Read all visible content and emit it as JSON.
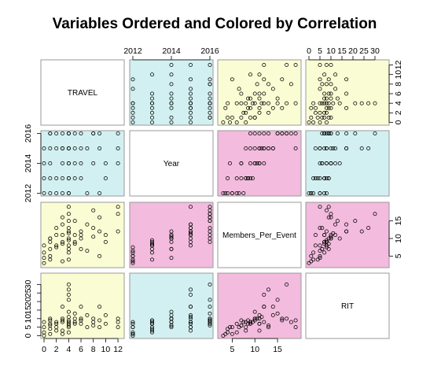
{
  "chart_data": {
    "type": "scatter",
    "title": "Variables Ordered and Colored by Correlation",
    "variables": [
      "TRAVEL",
      "Year",
      "Members_Per_Event",
      "RIT"
    ],
    "ranges": {
      "TRAVEL": [
        0,
        12.5
      ],
      "Year": [
        2012,
        2016
      ],
      "Members_Per_Event": [
        2.5,
        19.5
      ],
      "RIT": [
        0,
        35
      ]
    },
    "ticks": {
      "TRAVEL": [
        "0",
        "2",
        "4",
        "6",
        "8",
        "10",
        "12"
      ],
      "Year": [
        "2012",
        "2014",
        "2016"
      ],
      "Members_Per_Event": [
        "5",
        "10",
        "15"
      ],
      "RIT": [
        "0",
        "5",
        "10",
        "15",
        "20",
        "25",
        "30"
      ]
    },
    "tick_values": {
      "TRAVEL": [
        0,
        2,
        4,
        6,
        8,
        10,
        12
      ],
      "Year": [
        2012,
        2014,
        2016
      ],
      "Members_Per_Event": [
        5,
        10,
        15
      ],
      "RIT": [
        0,
        5,
        10,
        15,
        20,
        25,
        30
      ]
    },
    "panel_colors": {
      "high": "#f3bbdd",
      "mid": "#d2f0f1",
      "low": "#fafcd3",
      "diagonal": "#ffffff"
    },
    "panel_color_matrix": [
      [
        "diagonal",
        "mid",
        "low",
        "low"
      ],
      [
        "mid",
        "diagonal",
        "high",
        "mid"
      ],
      [
        "low",
        "high",
        "diagonal",
        "high"
      ],
      [
        "low",
        "mid",
        "high",
        "diagonal"
      ]
    ],
    "grid": false,
    "legend": "none",
    "observations": [
      [
        0,
        2012,
        3.0,
        0
      ],
      [
        0,
        2013,
        6.0,
        2
      ],
      [
        0,
        2014,
        4.5,
        5
      ],
      [
        0,
        2015,
        8.0,
        8
      ],
      [
        1,
        2016,
        9.0,
        7
      ],
      [
        1,
        2012,
        5.0,
        1
      ],
      [
        1,
        2016,
        10.0,
        9
      ],
      [
        1,
        2014,
        7.0,
        6
      ],
      [
        1,
        2015,
        10.0,
        10
      ],
      [
        1,
        2013,
        4.0,
        4
      ],
      [
        2,
        2013,
        8.0,
        3
      ],
      [
        2,
        2016,
        11.0,
        7
      ],
      [
        2,
        2015,
        13.0,
        5
      ],
      [
        2,
        2012,
        7.5,
        8
      ],
      [
        3,
        2012,
        3.5,
        1
      ],
      [
        3,
        2014,
        9.0,
        8
      ],
      [
        3,
        2015,
        14.0,
        17
      ],
      [
        3,
        2016,
        16.0,
        10
      ],
      [
        3,
        2013,
        8.5,
        9
      ],
      [
        3,
        2015,
        11.0,
        3
      ],
      [
        4,
        2012,
        6.0,
        7
      ],
      [
        4,
        2016,
        19.0,
        9
      ],
      [
        4,
        2015,
        12.0,
        24
      ],
      [
        4,
        2014,
        10.0,
        14
      ],
      [
        4,
        2013,
        8.0,
        5
      ],
      [
        4,
        2016,
        17.0,
        30
      ],
      [
        4,
        2015,
        11.5,
        11
      ],
      [
        4,
        2014,
        7.0,
        6
      ],
      [
        4,
        2012,
        4.0,
        2
      ],
      [
        4,
        2016,
        15.0,
        21
      ],
      [
        4,
        2013,
        9.5,
        8
      ],
      [
        4,
        2015,
        13.0,
        27
      ],
      [
        5,
        2016,
        15.0,
        13
      ],
      [
        5,
        2013,
        8.5,
        7
      ],
      [
        5,
        2014,
        11.0,
        10
      ],
      [
        5,
        2015,
        9.0,
        8
      ],
      [
        6,
        2016,
        12.0,
        17
      ],
      [
        6,
        2014,
        10.0,
        10
      ],
      [
        6,
        2013,
        7.0,
        9
      ],
      [
        6,
        2015,
        11.0,
        7
      ],
      [
        7,
        2015,
        14.0,
        12
      ],
      [
        7,
        2012,
        6.5,
        5
      ],
      [
        8,
        2016,
        18.0,
        8
      ],
      [
        8,
        2014,
        10.5,
        10
      ],
      [
        8,
        2016,
        13.0,
        6
      ],
      [
        9,
        2012,
        5.0,
        5
      ],
      [
        9,
        2015,
        12.0,
        17
      ],
      [
        9,
        2016,
        16.0,
        9
      ],
      [
        10,
        2013,
        9.0,
        7
      ],
      [
        10,
        2014,
        11.0,
        12
      ],
      [
        12,
        2016,
        17.0,
        10
      ],
      [
        12,
        2014,
        12.0,
        8
      ],
      [
        12,
        2015,
        19.0,
        5
      ]
    ]
  }
}
